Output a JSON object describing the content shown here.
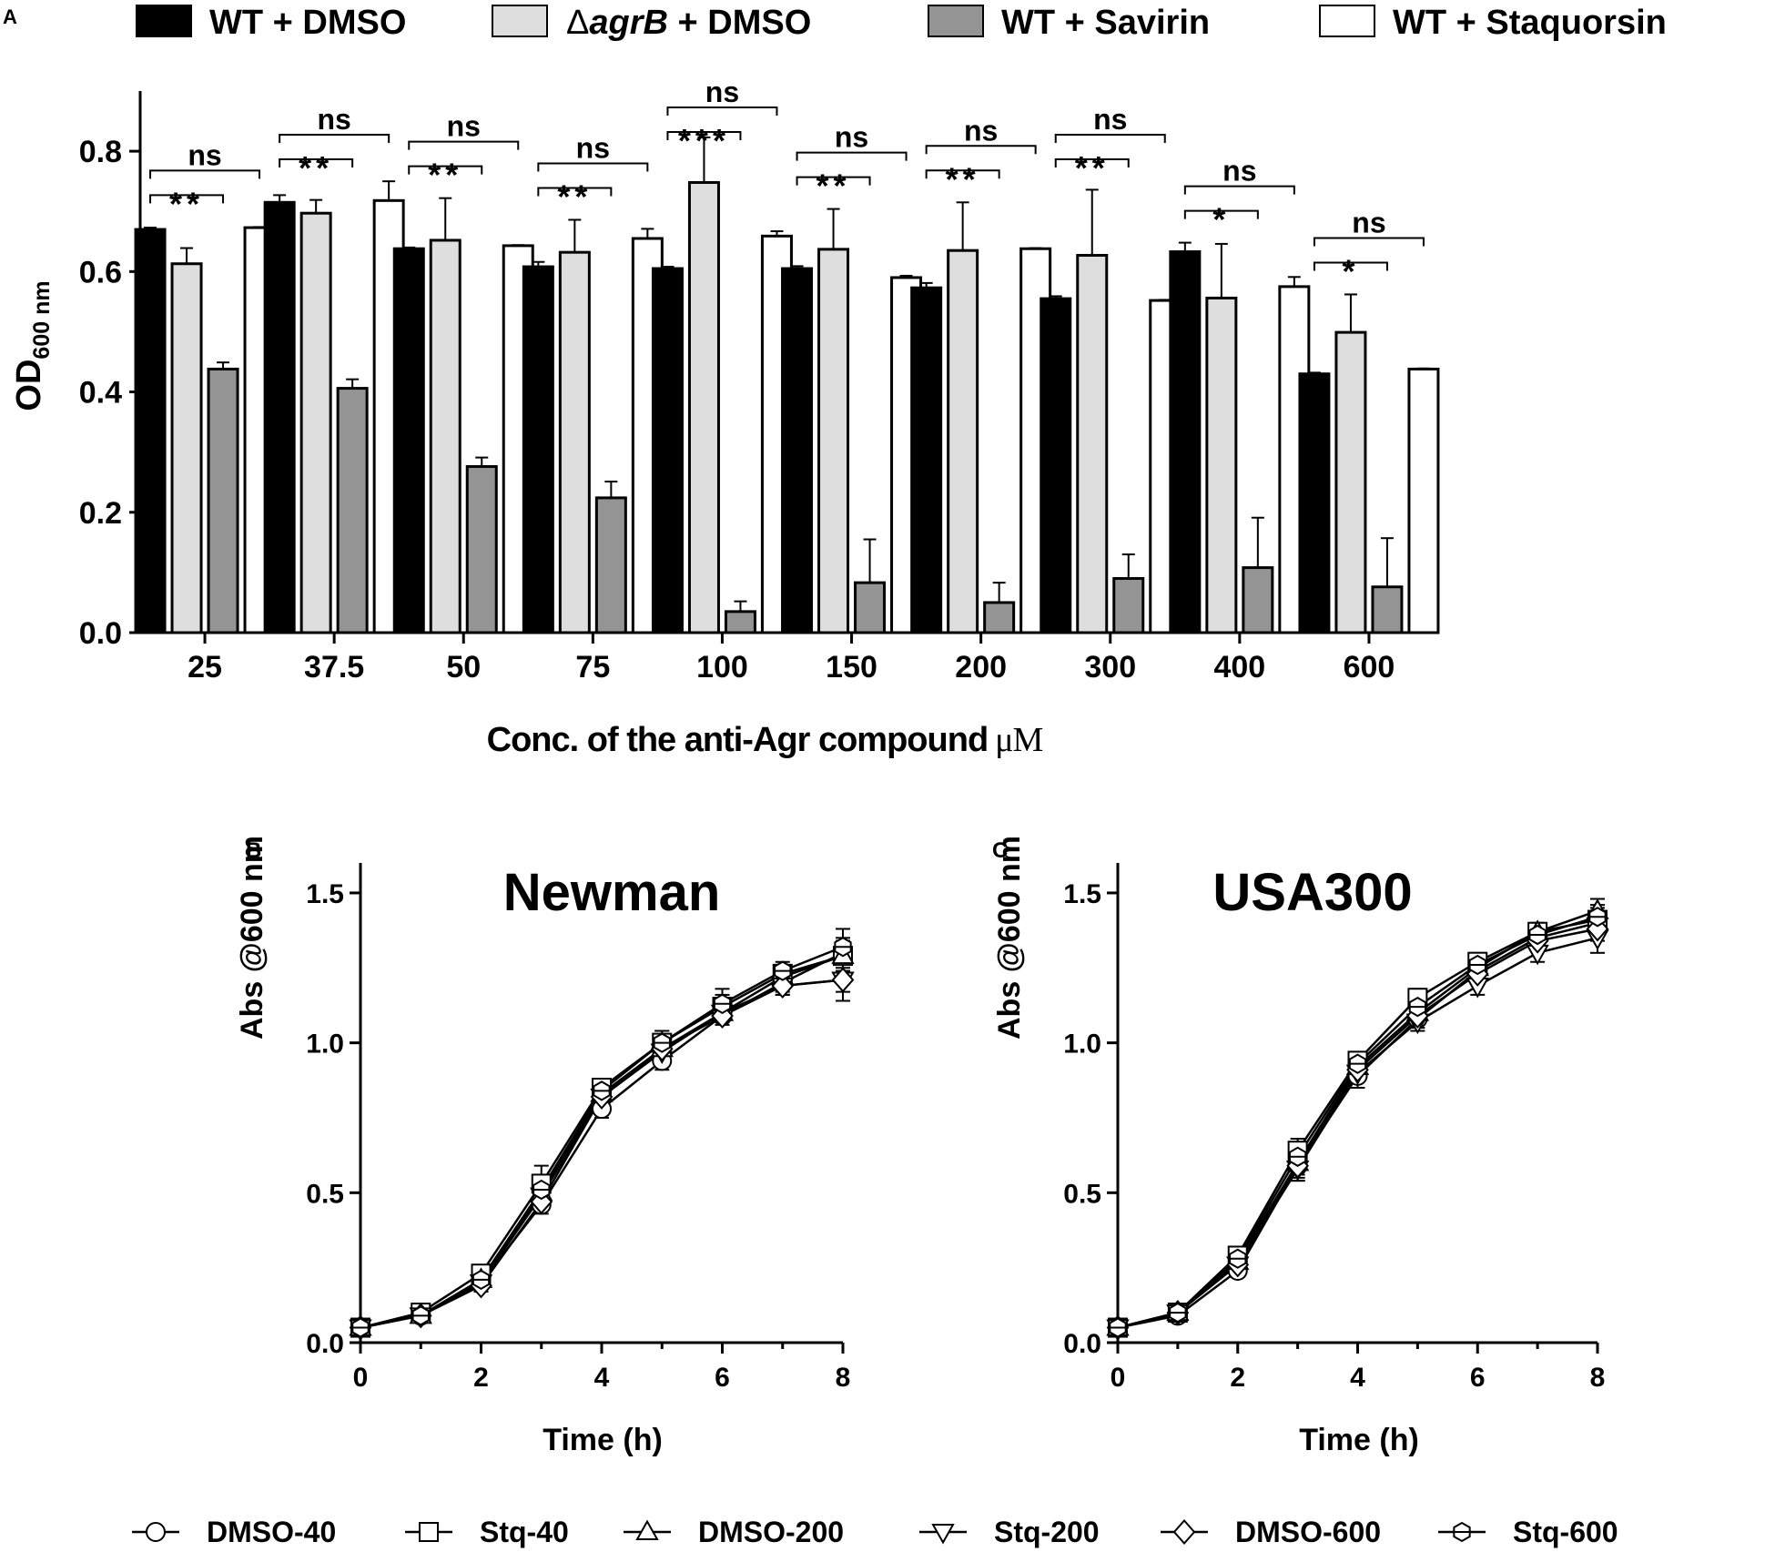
{
  "colors": {
    "wt_dmso": "#000000",
    "agrb_dmso": "#dedede",
    "wt_savirin": "#949494",
    "wt_staquorsin": "#ffffff",
    "axis": "#000000"
  },
  "chart_data": [
    {
      "panel": "A",
      "type": "bar",
      "title": "",
      "xlabel": "Conc. of the anti-Agr compound",
      "xlabel_unit": "μM",
      "ylabel_main": "OD",
      "ylabel_sub": "600 nm",
      "ylim": [
        0,
        0.9
      ],
      "yticks": [
        0.0,
        0.2,
        0.4,
        0.6,
        0.8
      ],
      "ytick_labels": [
        "0.0",
        "0.2",
        "0.4",
        "0.6",
        "0.8"
      ],
      "categories": [
        "25",
        "37.5",
        "50",
        "75",
        "100",
        "150",
        "200",
        "300",
        "400",
        "600"
      ],
      "legend": [
        {
          "key": "wt_dmso",
          "label": "WT + DMSO"
        },
        {
          "key": "agrb_dmso",
          "prefix": "Δ",
          "italic": "agrB",
          "suffix": " + DMSO"
        },
        {
          "key": "wt_savirin",
          "label": "WT + Savirin"
        },
        {
          "key": "wt_staquorsin",
          "label": "WT + Staquorsin"
        }
      ],
      "series": [
        {
          "name": "WT + DMSO",
          "values": [
            0.67,
            0.715,
            0.638,
            0.608,
            0.605,
            0.605,
            0.573,
            0.555,
            0.633,
            0.43
          ],
          "errors": [
            0.003,
            0.012,
            0.002,
            0.008,
            0.003,
            0.004,
            0.008,
            0.004,
            0.015,
            0.002
          ]
        },
        {
          "name": "ΔagrB + DMSO",
          "values": [
            0.613,
            0.697,
            0.652,
            0.632,
            0.748,
            0.637,
            0.635,
            0.627,
            0.556,
            0.499
          ],
          "errors": [
            0.026,
            0.022,
            0.07,
            0.054,
            0.075,
            0.067,
            0.08,
            0.109,
            0.09,
            0.063
          ]
        },
        {
          "name": "WT + Savirin",
          "values": [
            0.438,
            0.406,
            0.276,
            0.224,
            0.035,
            0.083,
            0.05,
            0.09,
            0.108,
            0.076
          ],
          "errors": [
            0.011,
            0.015,
            0.015,
            0.027,
            0.017,
            0.072,
            0.033,
            0.04,
            0.083,
            0.081
          ]
        },
        {
          "name": "WT + Staquorsin",
          "values": [
            0.673,
            0.718,
            0.643,
            0.655,
            0.659,
            0.59,
            0.638,
            0.552,
            0.575,
            0.438
          ],
          "errors": [
            0.001,
            0.032,
            0.001,
            0.016,
            0.008,
            0.003,
            0.001,
            0.001,
            0.016,
            0.001
          ]
        }
      ],
      "significance": [
        {
          "category": "25",
          "top": "ns",
          "bottom": "**"
        },
        {
          "category": "37.5",
          "top": "ns",
          "bottom": "**"
        },
        {
          "category": "50",
          "top": "ns",
          "bottom": "**"
        },
        {
          "category": "75",
          "top": "ns",
          "bottom": "**"
        },
        {
          "category": "100",
          "top": "ns",
          "bottom": "***"
        },
        {
          "category": "150",
          "top": "ns",
          "bottom": "**"
        },
        {
          "category": "200",
          "top": "ns",
          "bottom": "**"
        },
        {
          "category": "300",
          "top": "ns",
          "bottom": "**"
        },
        {
          "category": "400",
          "top": "ns",
          "bottom": "*"
        },
        {
          "category": "600",
          "top": "ns",
          "bottom": "*"
        }
      ]
    },
    {
      "panel": "B",
      "type": "line",
      "title": "Newman",
      "xlabel": "Time (h)",
      "ylabel": "Abs @600 nm",
      "xlim": [
        0,
        8
      ],
      "ylim": [
        0,
        1.6
      ],
      "xticks": [
        0,
        2,
        4,
        6,
        8
      ],
      "xtick_labels": [
        "0",
        "2",
        "4",
        "6",
        "8"
      ],
      "yticks": [
        0.0,
        0.5,
        1.0,
        1.5
      ],
      "ytick_labels": [
        "0.0",
        "0.5",
        "1.0",
        "1.5"
      ],
      "x": [
        0,
        1,
        2,
        3,
        4,
        5,
        6,
        7,
        8
      ],
      "series": [
        {
          "name": "DMSO-40",
          "values": [
            0.05,
            0.09,
            0.2,
            0.46,
            0.78,
            0.94,
            1.09,
            1.2,
            1.3
          ],
          "errors": [
            0.01,
            0.01,
            0.02,
            0.03,
            0.03,
            0.03,
            0.03,
            0.03,
            0.04
          ]
        },
        {
          "name": "Stq-40",
          "values": [
            0.05,
            0.1,
            0.23,
            0.53,
            0.85,
            1.0,
            1.12,
            1.23,
            1.29
          ],
          "errors": [
            0.01,
            0.01,
            0.02,
            0.06,
            0.02,
            0.04,
            0.04,
            0.03,
            0.06
          ]
        },
        {
          "name": "DMSO-200",
          "values": [
            0.05,
            0.09,
            0.21,
            0.5,
            0.83,
            0.98,
            1.1,
            1.22,
            1.29
          ],
          "errors": [
            0.01,
            0.01,
            0.02,
            0.04,
            0.03,
            0.03,
            0.03,
            0.02,
            0.05
          ]
        },
        {
          "name": "Stq-200",
          "values": [
            0.05,
            0.09,
            0.2,
            0.49,
            0.82,
            0.97,
            1.1,
            1.19,
            1.21
          ],
          "errors": [
            0.01,
            0.01,
            0.02,
            0.03,
            0.02,
            0.03,
            0.03,
            0.03,
            0.04
          ]
        },
        {
          "name": "DMSO-600",
          "values": [
            0.05,
            0.09,
            0.19,
            0.47,
            0.82,
            0.98,
            1.09,
            1.19,
            1.21
          ],
          "errors": [
            0.01,
            0.01,
            0.02,
            0.03,
            0.03,
            0.03,
            0.02,
            0.03,
            0.07
          ]
        },
        {
          "name": "Stq-600",
          "values": [
            0.05,
            0.09,
            0.21,
            0.51,
            0.84,
            1.0,
            1.13,
            1.24,
            1.32
          ],
          "errors": [
            0.01,
            0.01,
            0.02,
            0.04,
            0.02,
            0.04,
            0.05,
            0.03,
            0.06
          ]
        }
      ]
    },
    {
      "panel": "C",
      "type": "line",
      "title": "USA300",
      "xlabel": "Time (h)",
      "ylabel": "Abs @600 nm",
      "xlim": [
        0,
        8
      ],
      "ylim": [
        0,
        1.6
      ],
      "xticks": [
        0,
        2,
        4,
        6,
        8
      ],
      "xtick_labels": [
        "0",
        "2",
        "4",
        "6",
        "8"
      ],
      "yticks": [
        0.0,
        0.5,
        1.0,
        1.5
      ],
      "ytick_labels": [
        "0.0",
        "0.5",
        "1.0",
        "1.5"
      ],
      "x": [
        0,
        1,
        2,
        3,
        4,
        5,
        6,
        7,
        8
      ],
      "series": [
        {
          "name": "DMSO-40",
          "values": [
            0.05,
            0.09,
            0.24,
            0.59,
            0.89,
            1.08,
            1.24,
            1.35,
            1.4
          ],
          "errors": [
            0.01,
            0.01,
            0.02,
            0.05,
            0.04,
            0.03,
            0.03,
            0.03,
            0.04
          ]
        },
        {
          "name": "Stq-40",
          "values": [
            0.05,
            0.1,
            0.29,
            0.64,
            0.94,
            1.15,
            1.27,
            1.37,
            1.41
          ],
          "errors": [
            0.01,
            0.01,
            0.02,
            0.04,
            0.03,
            0.03,
            0.03,
            0.03,
            0.04
          ]
        },
        {
          "name": "DMSO-200",
          "values": [
            0.05,
            0.1,
            0.27,
            0.6,
            0.92,
            1.1,
            1.25,
            1.37,
            1.44
          ],
          "errors": [
            0.01,
            0.01,
            0.02,
            0.04,
            0.03,
            0.03,
            0.03,
            0.03,
            0.04
          ]
        },
        {
          "name": "Stq-200",
          "values": [
            0.05,
            0.1,
            0.26,
            0.58,
            0.9,
            1.07,
            1.19,
            1.3,
            1.35
          ],
          "errors": [
            0.01,
            0.01,
            0.02,
            0.04,
            0.03,
            0.03,
            0.03,
            0.03,
            0.05
          ]
        },
        {
          "name": "DMSO-600",
          "values": [
            0.05,
            0.1,
            0.26,
            0.59,
            0.91,
            1.09,
            1.23,
            1.34,
            1.38
          ],
          "errors": [
            0.01,
            0.01,
            0.02,
            0.04,
            0.03,
            0.03,
            0.03,
            0.03,
            0.04
          ]
        },
        {
          "name": "Stq-600",
          "values": [
            0.05,
            0.1,
            0.28,
            0.62,
            0.93,
            1.12,
            1.26,
            1.36,
            1.42
          ],
          "errors": [
            0.01,
            0.01,
            0.02,
            0.04,
            0.03,
            0.03,
            0.03,
            0.03,
            0.04
          ]
        }
      ]
    }
  ],
  "line_legend": [
    {
      "name": "DMSO-40",
      "marker": "circle"
    },
    {
      "name": "Stq-40",
      "marker": "square"
    },
    {
      "name": "DMSO-200",
      "marker": "triangle-up"
    },
    {
      "name": "Stq-200",
      "marker": "triangle-down"
    },
    {
      "name": "DMSO-600",
      "marker": "diamond"
    },
    {
      "name": "Stq-600",
      "marker": "hexagon"
    }
  ]
}
